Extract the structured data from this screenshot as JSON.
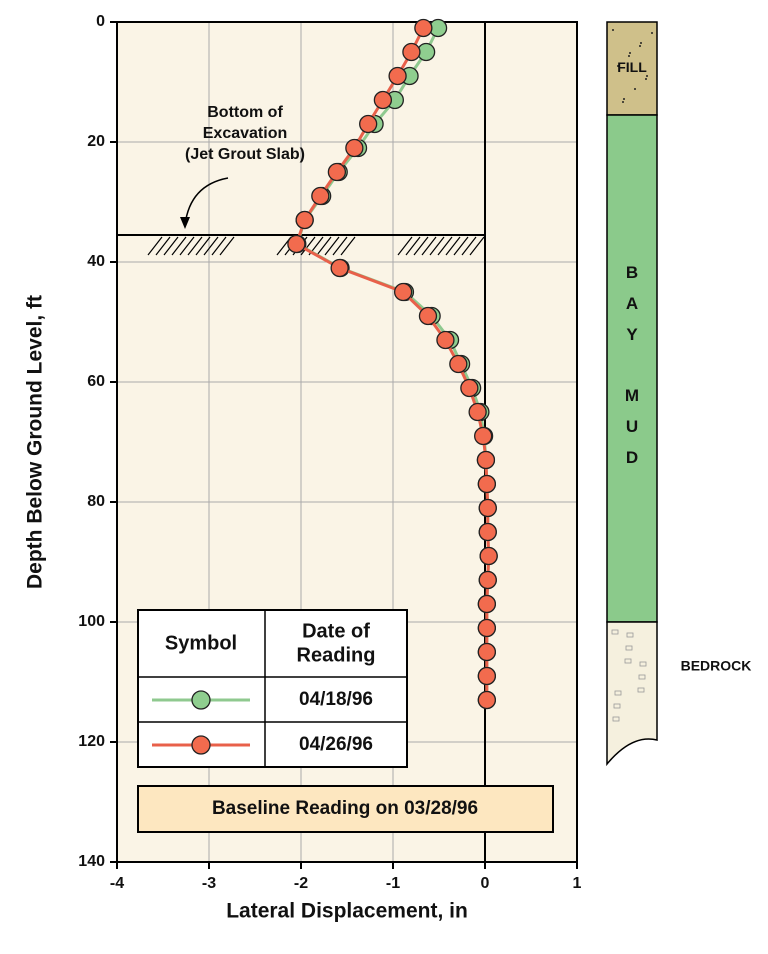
{
  "chart_data": {
    "type": "line",
    "xlabel": "Lateral Displacement, in",
    "ylabel": "Depth Below Ground Level, ft",
    "xlim": [
      -4,
      1
    ],
    "xticks": [
      -4,
      -3,
      -2,
      -1,
      0,
      1
    ],
    "ylim": [
      0,
      140
    ],
    "yticks": [
      0,
      20,
      40,
      60,
      80,
      100,
      120,
      140
    ],
    "y_inverted": true,
    "grid": true,
    "depth": [
      1,
      5,
      9,
      13,
      17,
      21,
      25,
      29,
      33,
      37,
      41,
      45,
      49,
      53,
      57,
      61,
      65,
      69,
      73,
      77,
      81,
      85,
      89,
      93,
      97,
      101,
      105,
      109,
      113
    ],
    "series": [
      {
        "name": "04/18/96",
        "color": "#8fce8f",
        "line_color": "#8fc98f",
        "values": [
          -0.51,
          -0.64,
          -0.82,
          -0.98,
          -1.2,
          -1.38,
          -1.59,
          -1.77,
          -1.96,
          -2.04,
          -1.57,
          -0.87,
          -0.58,
          -0.38,
          -0.26,
          -0.14,
          -0.05,
          -0.01,
          0.01,
          0.02,
          0.03,
          0.03,
          0.04,
          0.03,
          0.02,
          0.02,
          0.02,
          0.02,
          0.02
        ]
      },
      {
        "name": "04/26/96",
        "color": "#f26b4e",
        "line_color": "#e8604a",
        "values": [
          -0.67,
          -0.8,
          -0.95,
          -1.11,
          -1.27,
          -1.42,
          -1.61,
          -1.79,
          -1.96,
          -2.05,
          -1.58,
          -0.89,
          -0.62,
          -0.43,
          -0.29,
          -0.17,
          -0.08,
          -0.02,
          0.01,
          0.02,
          0.03,
          0.03,
          0.04,
          0.03,
          0.02,
          0.02,
          0.02,
          0.02,
          0.02
        ]
      }
    ],
    "excavation": {
      "depth": 35.5,
      "label_lines": [
        "Bottom of",
        "Excavation",
        "(Jet Grout Slab)"
      ]
    },
    "legend": {
      "symbol_header": "Symbol",
      "date_header_lines": [
        "Date of",
        "Reading"
      ]
    },
    "baseline_note": "Baseline Reading on 03/28/96",
    "soil_layers": [
      {
        "name": "FILL",
        "top": 0,
        "bottom": 15.5,
        "color": "#cfc08a"
      },
      {
        "letters": [
          "B",
          "A",
          "Y",
          "M",
          "U",
          "D"
        ],
        "top": 15.5,
        "bottom": 100,
        "color": "#8bca8b"
      },
      {
        "name": "BEDROCK",
        "top": 100,
        "color": "#f5f0de"
      }
    ]
  }
}
